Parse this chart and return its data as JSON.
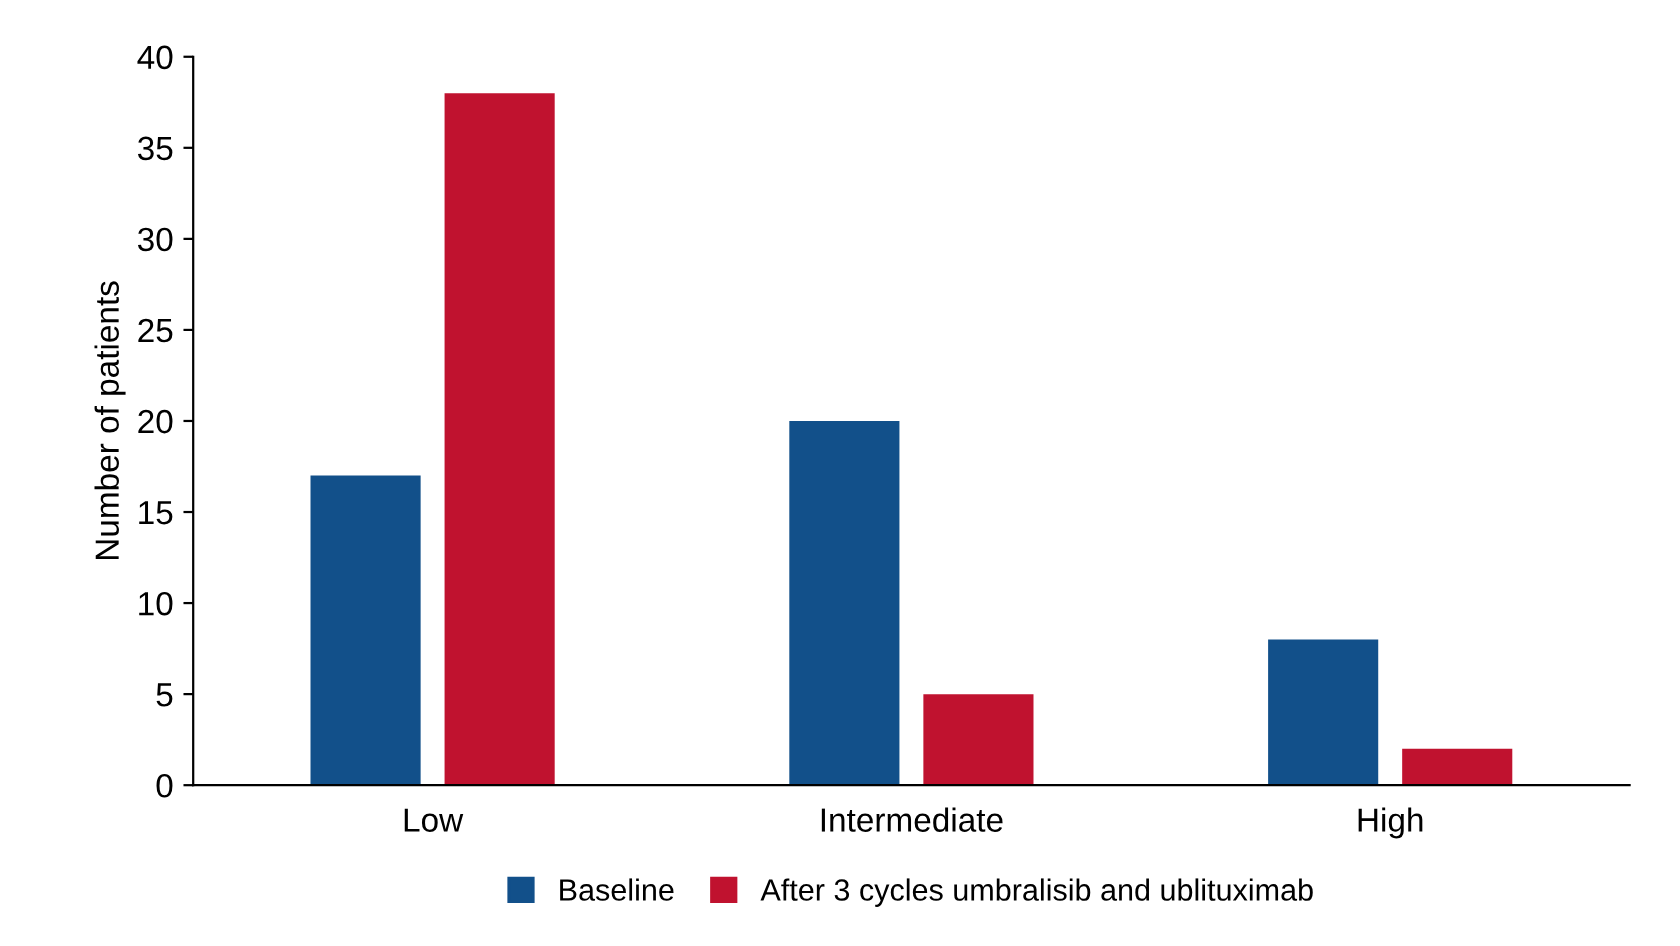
{
  "chart_data": {
    "type": "bar",
    "ylabel": "Number of patients",
    "categories": [
      "Low",
      "Intermediate",
      "High"
    ],
    "series": [
      {
        "name": "Baseline",
        "color": "#12508a",
        "values": [
          17,
          20,
          8
        ]
      },
      {
        "name": "After 3 cycles umbralisib and ublituximab",
        "color": "#c0122f",
        "values": [
          38,
          5,
          2
        ]
      }
    ],
    "ylim": [
      0,
      40
    ],
    "yticks": [
      0,
      5,
      10,
      15,
      20,
      25,
      30,
      35,
      40
    ],
    "grid": false,
    "legend": "bottom"
  }
}
